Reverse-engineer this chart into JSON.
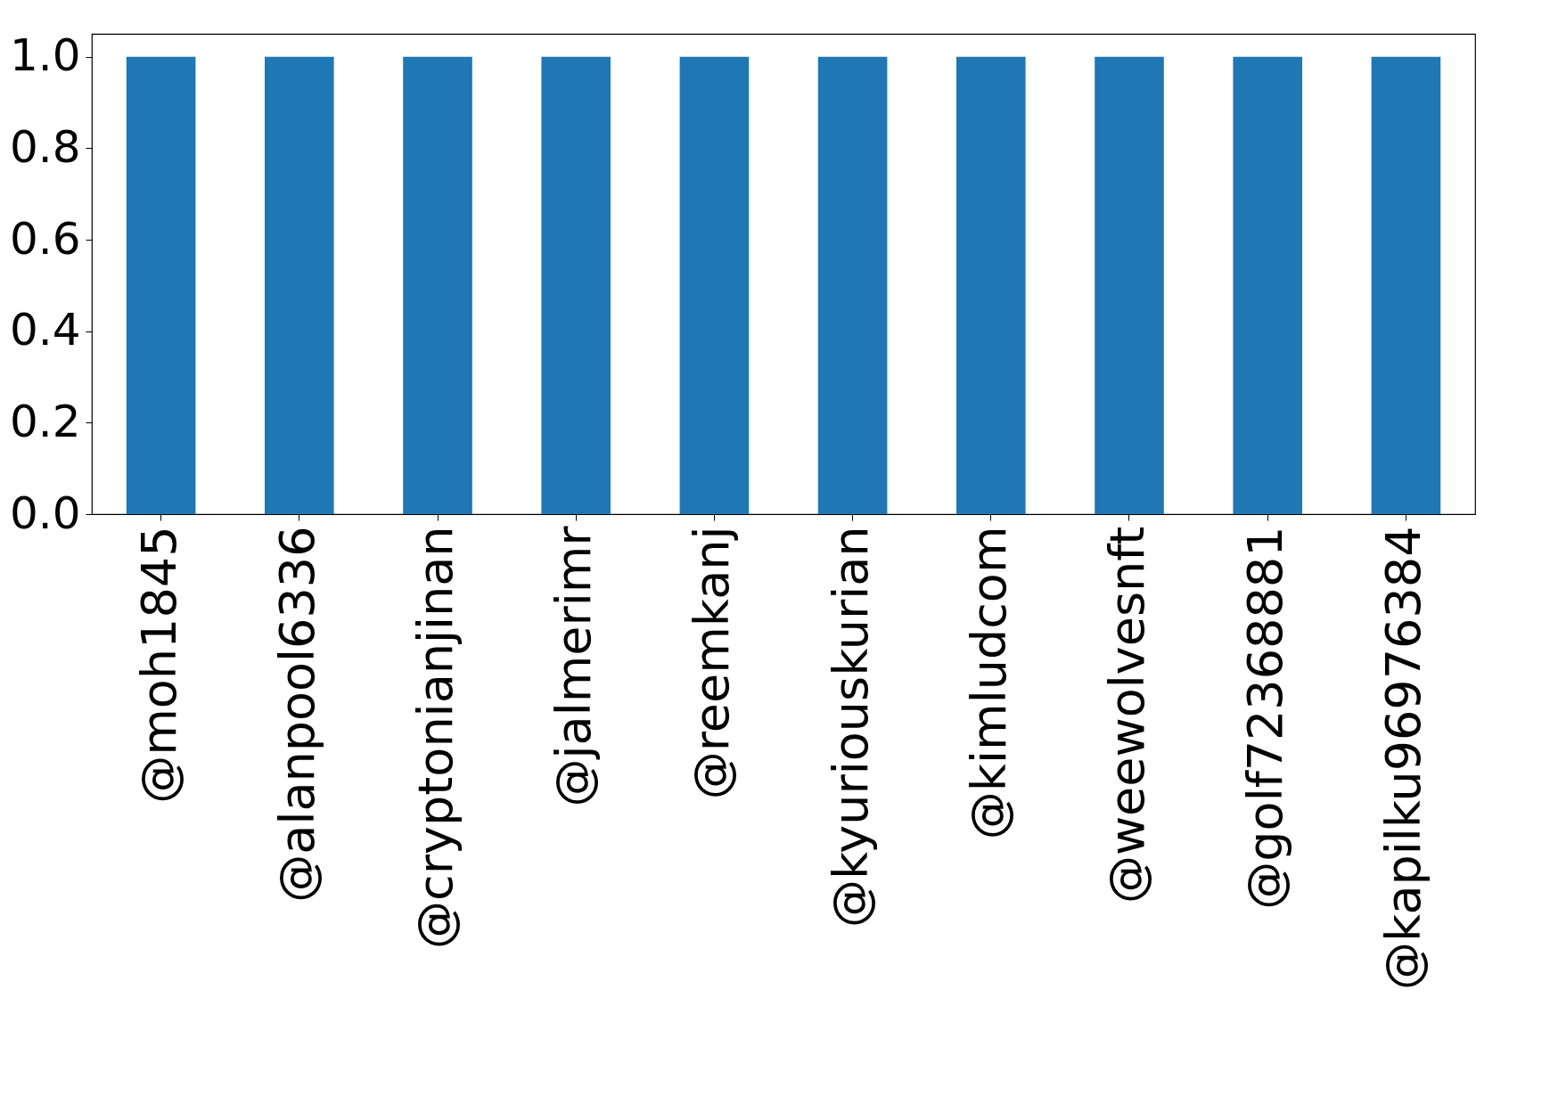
{
  "chart_data": {
    "type": "bar",
    "categories": [
      "@moh1845",
      "@alanpool6336",
      "@cryptonianjinan",
      "@jalmerimr",
      "@reemkanj",
      "@kyuriouskurian",
      "@kimludcom",
      "@weewolvesnft",
      "@golf72368881",
      "@kapilku96976384"
    ],
    "values": [
      1,
      1,
      1,
      1,
      1,
      1,
      1,
      1,
      1,
      1
    ],
    "color": "#1f77b4",
    "ylim": [
      0,
      1.05
    ],
    "yticks": [
      {
        "value": 0,
        "label": "0.0"
      },
      {
        "value": 0.2,
        "label": "0.2"
      },
      {
        "value": 0.4,
        "label": "0.4"
      },
      {
        "value": 0.6,
        "label": "0.6"
      },
      {
        "value": 0.8,
        "label": "0.8"
      },
      {
        "value": 1,
        "label": "1.0"
      }
    ],
    "grid": false
  }
}
